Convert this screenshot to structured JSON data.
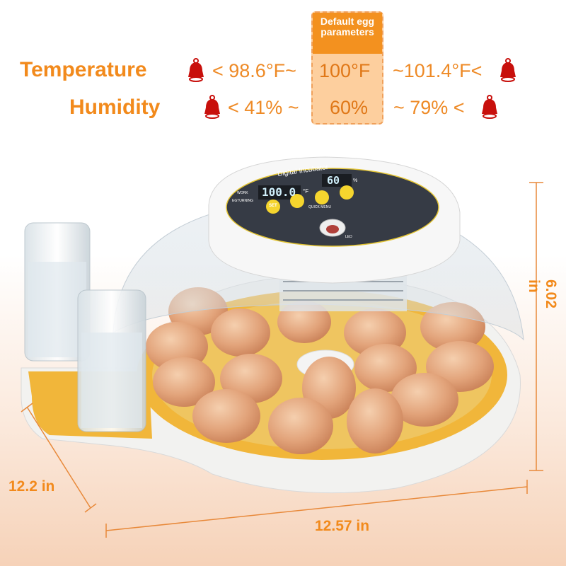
{
  "header": {
    "param_box_title": "Default egg parameters",
    "rows": [
      {
        "label": "Temperature",
        "low": "< 98.6°F~",
        "default": "100°F",
        "high": "~101.4°F<"
      },
      {
        "label": "Humidity",
        "low": "< 41% ~",
        "default": "60%",
        "high": "~ 79% <"
      }
    ],
    "alarm_icon": "bell-alarm-icon",
    "colors": {
      "accent": "#f28a1c",
      "box": "#f3911f",
      "box_fill": "#fdcf9e",
      "bell": "#c8100c"
    }
  },
  "control_panel": {
    "title": "Digital Incubator",
    "temp_display": "100.0",
    "temp_unit": "°F",
    "humidity_display": "60",
    "humidity_unit": "%",
    "indicator_work": "WORK",
    "indicator_turning": "EGTURNING",
    "set_button": "SET",
    "quick_menu": "QUICK MENU",
    "led_label": "LED"
  },
  "dimensions": {
    "height": "6.02 in",
    "depth": "12.2 in",
    "width": "12.57 in"
  }
}
